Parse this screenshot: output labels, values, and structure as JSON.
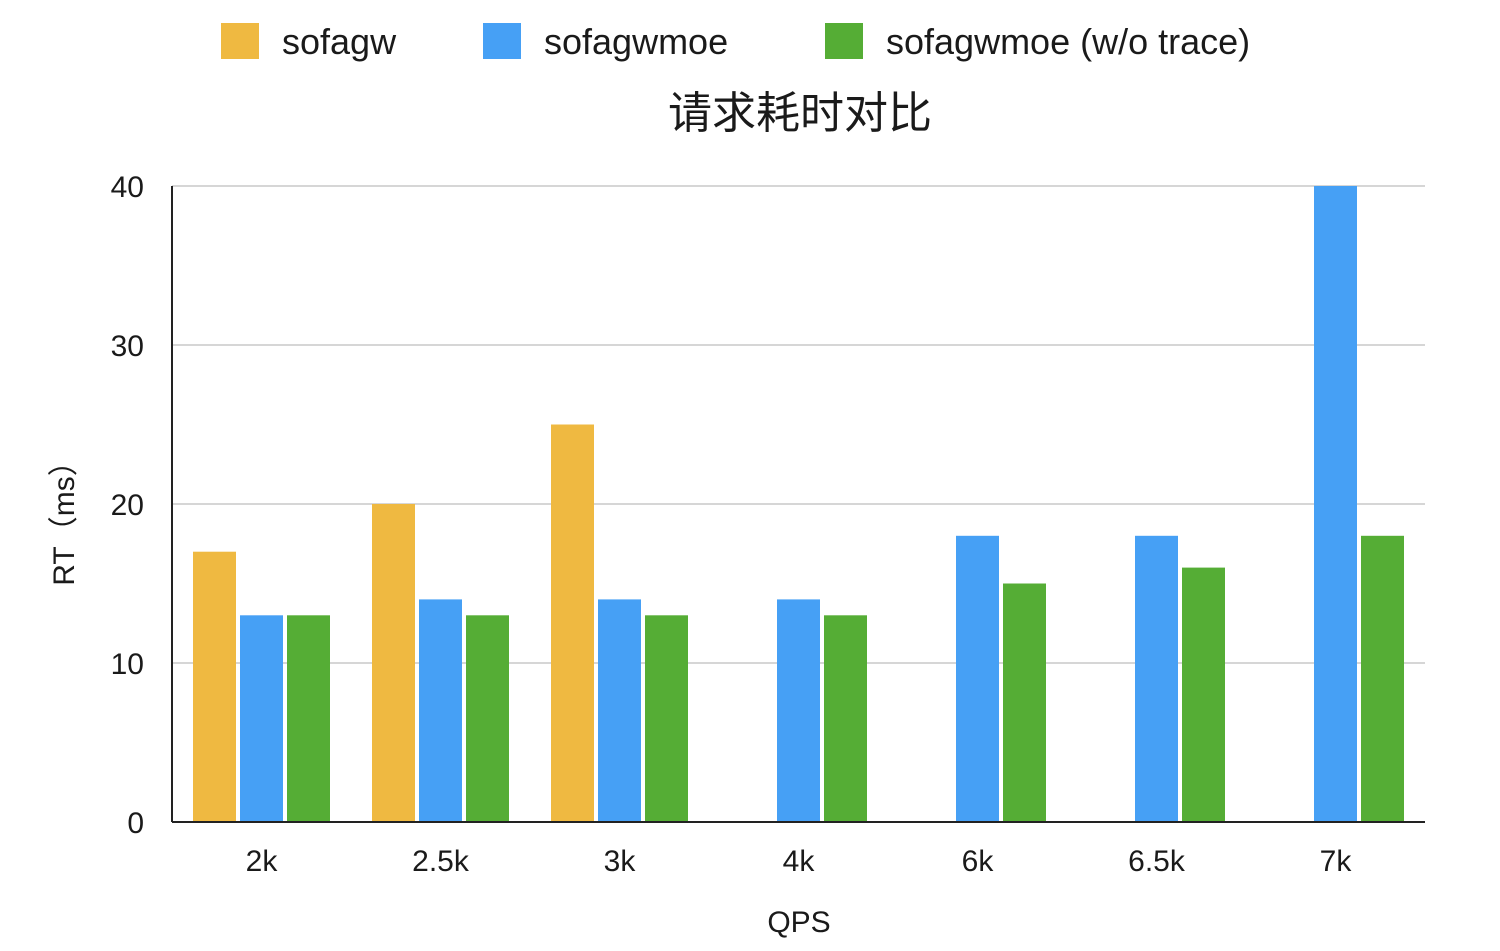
{
  "chart_data": {
    "type": "bar",
    "title": "请求耗时对比",
    "xlabel": "QPS",
    "ylabel": "RT（ms）",
    "categories": [
      "2k",
      "2.5k",
      "3k",
      "4k",
      "6k",
      "6.5k",
      "7k"
    ],
    "series": [
      {
        "name": "sofagw",
        "color": "#EFB941",
        "values": [
          17,
          20,
          25,
          null,
          null,
          null,
          null
        ]
      },
      {
        "name": "sofagwmoe",
        "color": "#46A0F5",
        "values": [
          13,
          14,
          14,
          14,
          18,
          18,
          40
        ]
      },
      {
        "name": "sofagwmoe (w/o trace)",
        "color": "#55AD35",
        "values": [
          13,
          13,
          13,
          13,
          15,
          16,
          18
        ]
      }
    ],
    "ylim": [
      0,
      40
    ],
    "yticks": [
      0,
      10,
      20,
      30,
      40
    ],
    "grid": true,
    "legend_position": "top"
  }
}
